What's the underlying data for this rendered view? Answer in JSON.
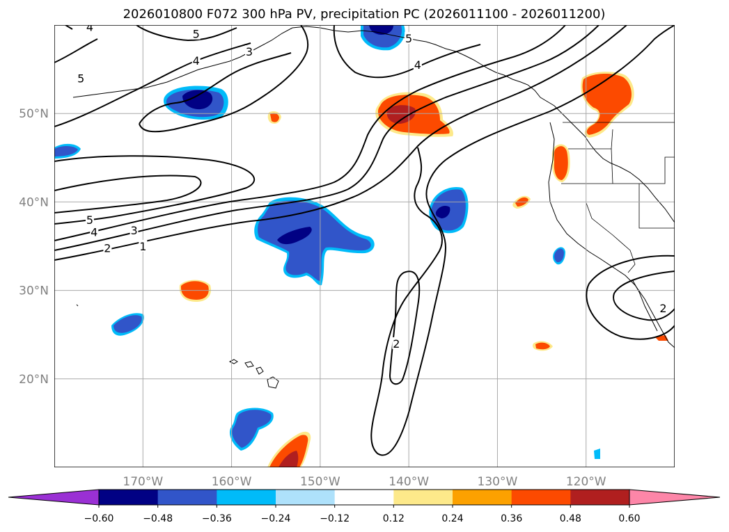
{
  "chart_data": {
    "type": "contour-map",
    "title": "2026010800 F072 300 hPa PV, precipitation PC (2026011100 - 2026011200)",
    "map": {
      "projection": "PlateCarree",
      "lon_range": [
        -180,
        -110
      ],
      "lat_range": [
        10,
        60
      ],
      "grid": true,
      "lon_ticks": [
        {
          "value": -170,
          "label": "170°W"
        },
        {
          "value": -160,
          "label": "160°W"
        },
        {
          "value": -150,
          "label": "150°W"
        },
        {
          "value": -140,
          "label": "140°W"
        },
        {
          "value": -130,
          "label": "130°W"
        },
        {
          "value": -120,
          "label": "120°W"
        }
      ],
      "lat_ticks": [
        {
          "value": 50,
          "label": "50°N"
        },
        {
          "value": 40,
          "label": "40°N"
        },
        {
          "value": 30,
          "label": "30°N"
        },
        {
          "value": 20,
          "label": "20°N"
        }
      ]
    },
    "pv_contour_labels": [
      {
        "text": "5",
        "lon": -177,
        "lat": 54
      },
      {
        "text": "5",
        "lon": -164,
        "lat": 59
      },
      {
        "text": "4",
        "lon": -176,
        "lat": 59.8
      },
      {
        "text": "4",
        "lon": -164,
        "lat": 56
      },
      {
        "text": "3",
        "lon": -158,
        "lat": 57
      },
      {
        "text": "4",
        "lon": -139,
        "lat": 55.5
      },
      {
        "text": "5",
        "lon": -140,
        "lat": 58.5
      },
      {
        "text": "5",
        "lon": -176,
        "lat": 38
      },
      {
        "text": "4",
        "lon": -175.5,
        "lat": 36.6
      },
      {
        "text": "3",
        "lon": -171,
        "lat": 36.8
      },
      {
        "text": "2",
        "lon": -174,
        "lat": 34.8
      },
      {
        "text": "1",
        "lon": -170,
        "lat": 35
      },
      {
        "text": "2",
        "lon": -141.4,
        "lat": 24
      },
      {
        "text": "2",
        "lon": -111.3,
        "lat": 28
      }
    ],
    "precip_pc_anomalies": [
      {
        "sign": "negative",
        "lon": -164.2,
        "lat": 51.5,
        "peak": -0.55
      },
      {
        "sign": "negative",
        "lon": -143,
        "lat": 59,
        "peak": -0.5
      },
      {
        "sign": "negative",
        "lon": -151.5,
        "lat": 36.3,
        "peak": -0.5
      },
      {
        "sign": "negative",
        "lon": -135.5,
        "lat": 38.8,
        "peak": -0.5
      },
      {
        "sign": "negative",
        "lon": -179,
        "lat": 46,
        "peak": -0.4
      },
      {
        "sign": "negative",
        "lon": -171.5,
        "lat": 26.2,
        "peak": -0.4
      },
      {
        "sign": "negative",
        "lon": -156,
        "lat": 14.5,
        "peak": -0.4
      },
      {
        "sign": "negative",
        "lon": -124.2,
        "lat": 34,
        "peak": -0.4
      },
      {
        "sign": "negative",
        "lon": -121,
        "lat": 11.4,
        "peak": -0.3
      },
      {
        "sign": "positive",
        "lon": -141.5,
        "lat": 50.3,
        "peak": 0.48
      },
      {
        "sign": "positive",
        "lon": -119.5,
        "lat": 52.5,
        "peak": 0.4
      },
      {
        "sign": "positive",
        "lon": -124.3,
        "lat": 43.3,
        "peak": 0.4
      },
      {
        "sign": "positive",
        "lon": -153.5,
        "lat": 12.3,
        "peak": 0.55
      },
      {
        "sign": "positive",
        "lon": -166,
        "lat": 30,
        "peak": 0.42
      },
      {
        "sign": "positive",
        "lon": -126.8,
        "lat": 40,
        "peak": 0.4
      },
      {
        "sign": "positive",
        "lon": -126.2,
        "lat": 23.8,
        "peak": 0.4
      },
      {
        "sign": "positive",
        "lon": -154.7,
        "lat": 49.6,
        "peak": 0.4
      }
    ],
    "colorbar": {
      "levels": [
        -0.6,
        -0.48,
        -0.36,
        -0.24,
        -0.12,
        0.12,
        0.24,
        0.36,
        0.48,
        0.6
      ],
      "tick_labels": [
        "−0.60",
        "−0.48",
        "−0.36",
        "−0.24",
        "−0.12",
        "0.12",
        "0.24",
        "0.36",
        "0.48",
        "0.60"
      ],
      "colors": [
        "#9a30d4",
        "#010184",
        "#3155c9",
        "#00bbf9",
        "#aee1fb",
        "#ffffff",
        "#fde98a",
        "#fca100",
        "#fc4a00",
        "#b01f1f",
        "#fd86a8"
      ],
      "extend": "both"
    }
  }
}
